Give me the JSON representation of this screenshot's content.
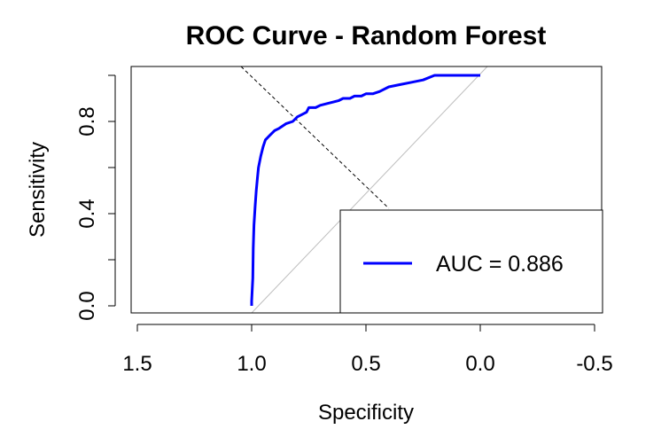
{
  "chart_data": {
    "type": "line",
    "title": "ROC Curve - Random Forest",
    "xlabel": "Specificity",
    "ylabel": "Sensitivity",
    "x_reversed": true,
    "xlim": [
      1.5,
      -0.5
    ],
    "ylim": [
      0.0,
      1.0
    ],
    "x_ticks": [
      1.5,
      1.0,
      0.5,
      0.0,
      -0.5
    ],
    "x_tick_labels": [
      "1.5",
      "1.0",
      "0.5",
      "0.0",
      "-0.5"
    ],
    "y_ticks": [
      0.0,
      0.2,
      0.4,
      0.6,
      0.8,
      1.0
    ],
    "y_tick_labels": [
      "0.0",
      "",
      "0.4",
      "",
      "0.8",
      ""
    ],
    "grid": false,
    "legend_position": "bottom-right",
    "colors": {
      "roc": "#0000ff",
      "reference": "#bebebe",
      "crosshair": "#000000"
    },
    "reference_line": {
      "x": [
        1.0,
        0.0
      ],
      "y": [
        0.0,
        1.0
      ]
    },
    "crosshair_line": {
      "x": [
        1.0,
        0.4
      ],
      "y": [
        1.0,
        0.4
      ]
    },
    "series": [
      {
        "name": "AUC = 0.886",
        "x": [
          1.0,
          1.0,
          0.995,
          0.993,
          0.99,
          0.985,
          0.98,
          0.975,
          0.97,
          0.96,
          0.95,
          0.94,
          0.92,
          0.9,
          0.88,
          0.85,
          0.82,
          0.8,
          0.78,
          0.76,
          0.75,
          0.72,
          0.7,
          0.66,
          0.62,
          0.6,
          0.57,
          0.55,
          0.52,
          0.5,
          0.47,
          0.44,
          0.4,
          0.35,
          0.3,
          0.25,
          0.2,
          0.15,
          0.1,
          0.05,
          0.0
        ],
        "y": [
          0.0,
          0.02,
          0.12,
          0.25,
          0.35,
          0.43,
          0.5,
          0.55,
          0.6,
          0.65,
          0.69,
          0.72,
          0.74,
          0.76,
          0.77,
          0.79,
          0.8,
          0.82,
          0.83,
          0.84,
          0.86,
          0.86,
          0.87,
          0.88,
          0.89,
          0.9,
          0.9,
          0.91,
          0.91,
          0.92,
          0.92,
          0.93,
          0.95,
          0.96,
          0.97,
          0.98,
          1.0,
          1.0,
          1.0,
          1.0,
          1.0
        ]
      }
    ],
    "legend": {
      "entries": [
        "AUC = 0.886"
      ]
    }
  }
}
